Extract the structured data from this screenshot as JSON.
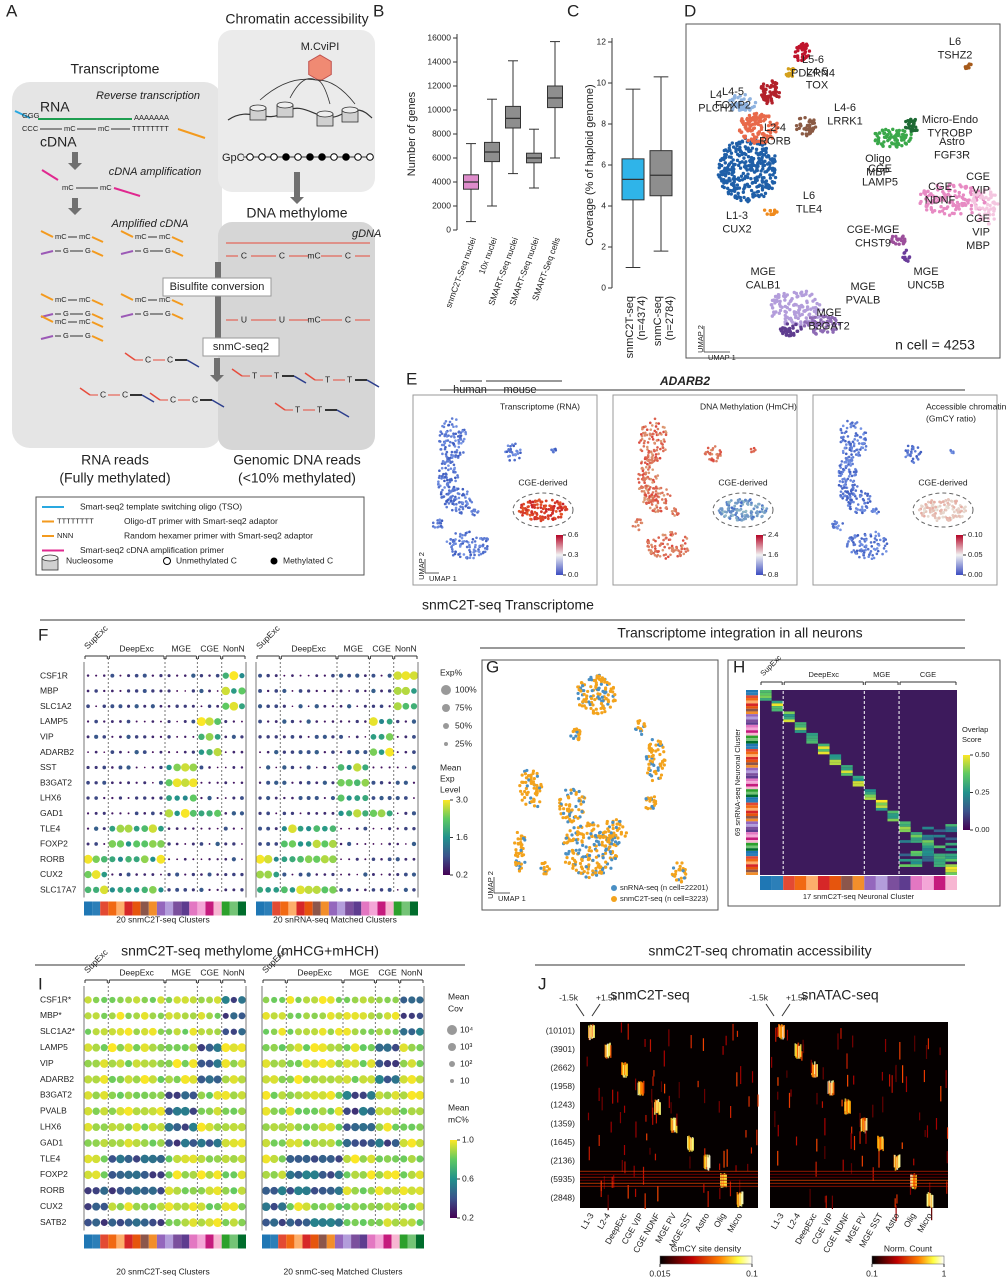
{
  "A": {
    "letter": "A",
    "transcriptome": "Transcriptome",
    "chromatin": "Chromatin accessibility",
    "enzyme": "M.CviPI",
    "gpc": "GpC",
    "methylome": "DNA methylome",
    "gdna": "gDNA",
    "rna": "RNA",
    "reverse_transcription": "Reverse transcription",
    "tso": "GGG",
    "polya": "AAAAAAA",
    "ccc": "CCC",
    "mc": "mC",
    "oligo_dt": "TTTTTTTT",
    "cdna": "cDNA",
    "cdna_amplification": "cDNA amplification",
    "amplified_cdna": "Amplified cDNA",
    "g": "G",
    "c": "C",
    "u": "U",
    "t": "T",
    "bisulfite": "Bisulfite conversion",
    "snmc_seq2": "snmC-seq2",
    "rna_reads": [
      "RNA reads",
      "(Fully methylated)"
    ],
    "genomic_reads": [
      "Genomic DNA reads",
      "(<10% methylated)"
    ],
    "legend": {
      "items": [
        "Smart-seq2 template switching oligo (TSO)",
        "Oligo-dT primer with Smart-seq2 adaptor",
        "Random hexamer primer with Smart-seq2 adaptor",
        "Smart-seq2 cDNA amplification primer"
      ],
      "colors": [
        "#29a8e0",
        "#f39a1e",
        "#f39a1e",
        "#e0288f"
      ],
      "symbols": [
        "TTTTTTTT",
        "NNN"
      ],
      "nucleosome": "Nucleosome",
      "unmethylated": "Unmethylated C",
      "methylated": "Methylated C"
    }
  },
  "chart_data": [
    {
      "type": "box",
      "letter": "B",
      "ylabel": "Number of genes",
      "categories": [
        "snmC2T-Seq nuclei",
        "10x nuclei",
        "SMART-Seq nuclei",
        "SMART-Seq nuclei",
        "SMART-Seq cells"
      ],
      "values": [
        [
          700,
          3400,
          4000,
          4600,
          7200
        ],
        [
          2000,
          5700,
          6500,
          7300,
          10900
        ],
        [
          4700,
          8500,
          9300,
          10300,
          14100
        ],
        [
          3500,
          5600,
          6000,
          6400,
          8400
        ],
        [
          6000,
          10200,
          11000,
          12000,
          15700
        ]
      ],
      "colors": [
        "#de8ccb",
        "#8e8e8e",
        "#8e8e8e",
        "#8e8e8e",
        "#8e8e8e"
      ],
      "ylim": [
        0,
        16000
      ],
      "yticks": [
        0,
        2000,
        4000,
        6000,
        8000,
        10000,
        12000,
        14000,
        16000
      ],
      "groups": [
        "human",
        "mouse"
      ]
    },
    {
      "type": "box",
      "letter": "C",
      "ylabel": "Coverage (% of haploid genome)",
      "categories": [
        "snmC2T-seq",
        "snmC-seq"
      ],
      "counts": [
        "(n=4374)",
        "(n=2784)"
      ],
      "values": [
        [
          1.0,
          4.3,
          5.3,
          6.3,
          9.7
        ],
        [
          1.8,
          4.5,
          5.5,
          6.7,
          10.3
        ]
      ],
      "colors": [
        "#2fb4e9",
        "#8e8e8e"
      ],
      "ylim": [
        0,
        12
      ],
      "yticks": [
        0,
        2,
        4,
        6,
        8,
        10,
        12
      ]
    }
  ],
  "D": {
    "letter": "D",
    "clusters": [
      [
        "L6",
        "TSHZ2"
      ],
      [
        "L5-6",
        "PDZRN4"
      ],
      [
        "L4-5",
        "FOXP2"
      ],
      [
        "L4-5",
        "TOX"
      ],
      [
        "L4",
        "PLCH1"
      ],
      [
        "L4-6",
        "LRRK1"
      ],
      [
        "Micro-Endo",
        "TYROBP"
      ],
      [
        "Astro",
        "FGF3R"
      ],
      [
        "L2-4",
        "RORB"
      ],
      [
        "Oligo",
        "MBP"
      ],
      [
        "CGE",
        "VIP"
      ],
      [
        "CGE",
        "LAMP5"
      ],
      [
        "CGE",
        "NDNF"
      ],
      [
        "L6",
        "TLE4"
      ],
      [
        "L1-3",
        "CUX2"
      ],
      [
        "CGE-MGE",
        "CHST9"
      ],
      [
        "CGE",
        "VIP",
        "MBP"
      ],
      [
        "MGE",
        "UNC5B"
      ],
      [
        "MGE",
        "CALB1"
      ],
      [
        "MGE",
        "PVALB"
      ],
      [
        "MGE",
        "B3GAT2"
      ]
    ],
    "umap_y": "UMAP 2",
    "umap_x": "UMAP 1",
    "n_cell": "n cell = 4253"
  },
  "E": {
    "letter": "E",
    "gene": "ADARB2",
    "cge": "CGE-derived",
    "umap_y": "UMAP 2",
    "umap_x": "UMAP 1",
    "panels": [
      {
        "title": [
          "Transcriptome (RNA)"
        ],
        "ticks": [
          {
            "value": 0,
            "label": "0.0"
          },
          0.3,
          0.6
        ]
      },
      {
        "title": [
          "DNA Methylation (HmCH)"
        ],
        "ticks": [
          0.8,
          1.6,
          2.4
        ]
      },
      {
        "title": [
          "Accessible chromatin",
          "(GmCY ratio)"
        ],
        "ticks": [
          {
            "value": 0,
            "label": "0.00"
          },
          0.05,
          {
            "value": 0.1,
            "label": "0.10"
          }
        ]
      }
    ]
  },
  "F": {
    "section": "snmC2T-seq Transcriptome",
    "letter": "F",
    "groups": [
      "SupExc",
      "DeepExc",
      "MGE",
      "CGE",
      "NonN"
    ],
    "genes": [
      "CSF1R",
      "MBP",
      "SLC1A2",
      "LAMP5",
      "VIP",
      "ADARB2",
      "SST",
      "B3GAT2",
      "LHX6",
      "GAD1",
      "TLE4",
      "FOXP2",
      "RORB",
      "CUX2",
      "SLC17A7"
    ],
    "exp_title": "Exp%",
    "exp_sizes": [
      {
        "value": 100,
        "label": "100%"
      },
      {
        "value": 75,
        "label": "75%"
      },
      {
        "value": 50,
        "label": "50%"
      },
      {
        "value": 25,
        "label": "25%"
      }
    ],
    "color_title": [
      "Mean",
      "Exp",
      "Level"
    ],
    "color_ticks": [
      {
        "value": 3,
        "label": "3.0"
      },
      1.6,
      0.2
    ],
    "captions": [
      "20 snmC2T-seq Clusters",
      "20 snRNA-seq Matched Clusters"
    ]
  },
  "G": {
    "title": "Transcriptome integration in all neurons",
    "letter": "G",
    "legend": [
      "snRNA-seq (n cell=22201)",
      "snmC2T-seq (n cell=3223)"
    ],
    "colors": [
      "#4a8fc4",
      "#f3a31d"
    ],
    "umap_y": "UMAP 2",
    "umap_x": "UMAP 1"
  },
  "H": {
    "letter": "H",
    "groups": [
      "SupExc",
      "DeepExc",
      "MGE",
      "CGE"
    ],
    "ylabel": "69 snRNA-seq Neuronal Cluster",
    "xlabel": "17 snmC2T-seq Neuronal Cluster",
    "score_title": [
      "Overlap",
      "Score"
    ],
    "ticks": [
      {
        "value": 0.5,
        "label": "0.50"
      },
      0.25,
      {
        "value": 0,
        "label": "0.00"
      }
    ]
  },
  "I": {
    "section": "snmC2T-seq methylome (mHCG+mHCH)",
    "letter": "I",
    "groups": [
      "SupExc",
      "DeepExc",
      "MGE",
      "CGE",
      "NonN"
    ],
    "genes": [
      "CSF1R*",
      "MBP*",
      "SLC1A2*",
      "LAMP5",
      "VIP",
      "ADARB2",
      "B3GAT2",
      "PVALB",
      "LHX6",
      "GAD1",
      "TLE4",
      "FOXP2",
      "RORB",
      "CUX2",
      "SATB2"
    ],
    "cov_title": [
      "Mean",
      "Cov"
    ],
    "cov_sizes": [
      {
        "value": 10000,
        "label": "10⁴"
      },
      {
        "value": 1000,
        "label": "10³"
      },
      {
        "value": 100,
        "label": "10²"
      },
      10
    ],
    "mc_title": [
      "Mean",
      "mC%"
    ],
    "mc_ticks": [
      {
        "value": 1,
        "label": "1.0"
      },
      0.6,
      0.2
    ],
    "captions": [
      "20 snmC2T-seq Clusters",
      "20 snmC-seq Matched Clusters"
    ]
  },
  "J": {
    "section": "snmC2T-seq chromatin accessibility",
    "letter": "J",
    "panels": [
      "snmC2T-seq",
      "snATAC-seq"
    ],
    "flank": [
      "-1.5k",
      "+1.5k"
    ],
    "rows": [
      "(10101)",
      "(3901)",
      "(2662)",
      "(1958)",
      "(1243)",
      "(1359)",
      "(1645)",
      "(2136)",
      "(5935)",
      "(2848)"
    ],
    "columns": [
      "L1-3",
      "L2-4",
      "DeepExc",
      "CGE VIP",
      "CGE NDNF",
      "MGE PV",
      "MGE SST",
      "Astro",
      "Olig",
      "Micro"
    ],
    "colorbars": [
      {
        "title": "GmCY site density",
        "ticks": [
          0.015,
          0.1
        ]
      },
      {
        "title": "Norm. Count",
        "ticks": [
          0.1,
          1
        ]
      }
    ]
  }
}
